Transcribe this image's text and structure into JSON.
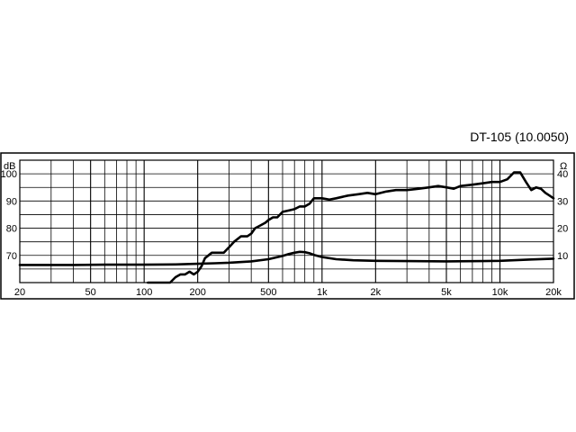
{
  "chart_data": {
    "type": "line",
    "title": "DT-105 (10.0050)",
    "x_scale": "log",
    "xlim": [
      20,
      20000
    ],
    "x_ticks": [
      {
        "value": 20,
        "label": "20"
      },
      {
        "value": 50,
        "label": "50"
      },
      {
        "value": 100,
        "label": "100"
      },
      {
        "value": 200,
        "label": "200"
      },
      {
        "value": 500,
        "label": "500"
      },
      {
        "value": 1000,
        "label": "1k"
      },
      {
        "value": 2000,
        "label": "2k"
      },
      {
        "value": 5000,
        "label": "5k"
      },
      {
        "value": 10000,
        "label": "10k"
      },
      {
        "value": 20000,
        "label": "20k"
      }
    ],
    "y_left": {
      "unit": "dB",
      "ylim": [
        60,
        105
      ],
      "ticks": [
        70,
        80,
        90,
        100
      ]
    },
    "y_right": {
      "unit": "Ω",
      "ylim": [
        0,
        45
      ],
      "ticks": [
        10,
        20,
        30,
        40
      ]
    },
    "grid": true,
    "series": [
      {
        "axis": "left",
        "x": [
          105,
          120,
          140,
          150,
          160,
          170,
          180,
          190,
          200,
          210,
          220,
          240,
          260,
          280,
          300,
          320,
          350,
          380,
          400,
          420,
          450,
          480,
          500,
          530,
          560,
          600,
          650,
          700,
          750,
          800,
          850,
          900,
          1000,
          1100,
          1200,
          1400,
          1600,
          1800,
          2000,
          2300,
          2600,
          3000,
          3500,
          4000,
          4500,
          5000,
          5500,
          6000,
          7000,
          8000,
          9000,
          10000,
          11000,
          12000,
          13000,
          14000,
          15000,
          16000,
          17000,
          18000,
          19000,
          20000
        ],
        "y": [
          60,
          60,
          60,
          62,
          63,
          63,
          64,
          63,
          64,
          66,
          69,
          71,
          71,
          71,
          73,
          75,
          77,
          77,
          78,
          80,
          81,
          82,
          83,
          84,
          84,
          86,
          86.5,
          87,
          88,
          88,
          89,
          91,
          91,
          90.5,
          91,
          92,
          92.5,
          93,
          92.5,
          93.5,
          94,
          94,
          94.5,
          95,
          95.5,
          95,
          94.5,
          95.5,
          96,
          96.5,
          97,
          97,
          98,
          100.5,
          100.5,
          97,
          94,
          95,
          94.5,
          93,
          92,
          91
        ]
      },
      {
        "axis": "right",
        "x": [
          20,
          40,
          60,
          80,
          100,
          150,
          200,
          250,
          300,
          400,
          500,
          600,
          650,
          700,
          750,
          800,
          850,
          900,
          1000,
          1200,
          1500,
          2000,
          3000,
          5000,
          8000,
          10000,
          15000,
          20000
        ],
        "y": [
          6.5,
          6.5,
          6.6,
          6.6,
          6.6,
          6.7,
          6.9,
          7.1,
          7.3,
          7.8,
          8.6,
          9.8,
          10.5,
          11.0,
          11.3,
          11.2,
          10.8,
          10.2,
          9.4,
          8.6,
          8.2,
          8.0,
          7.9,
          7.8,
          7.9,
          8.0,
          8.5,
          8.8
        ]
      }
    ]
  }
}
